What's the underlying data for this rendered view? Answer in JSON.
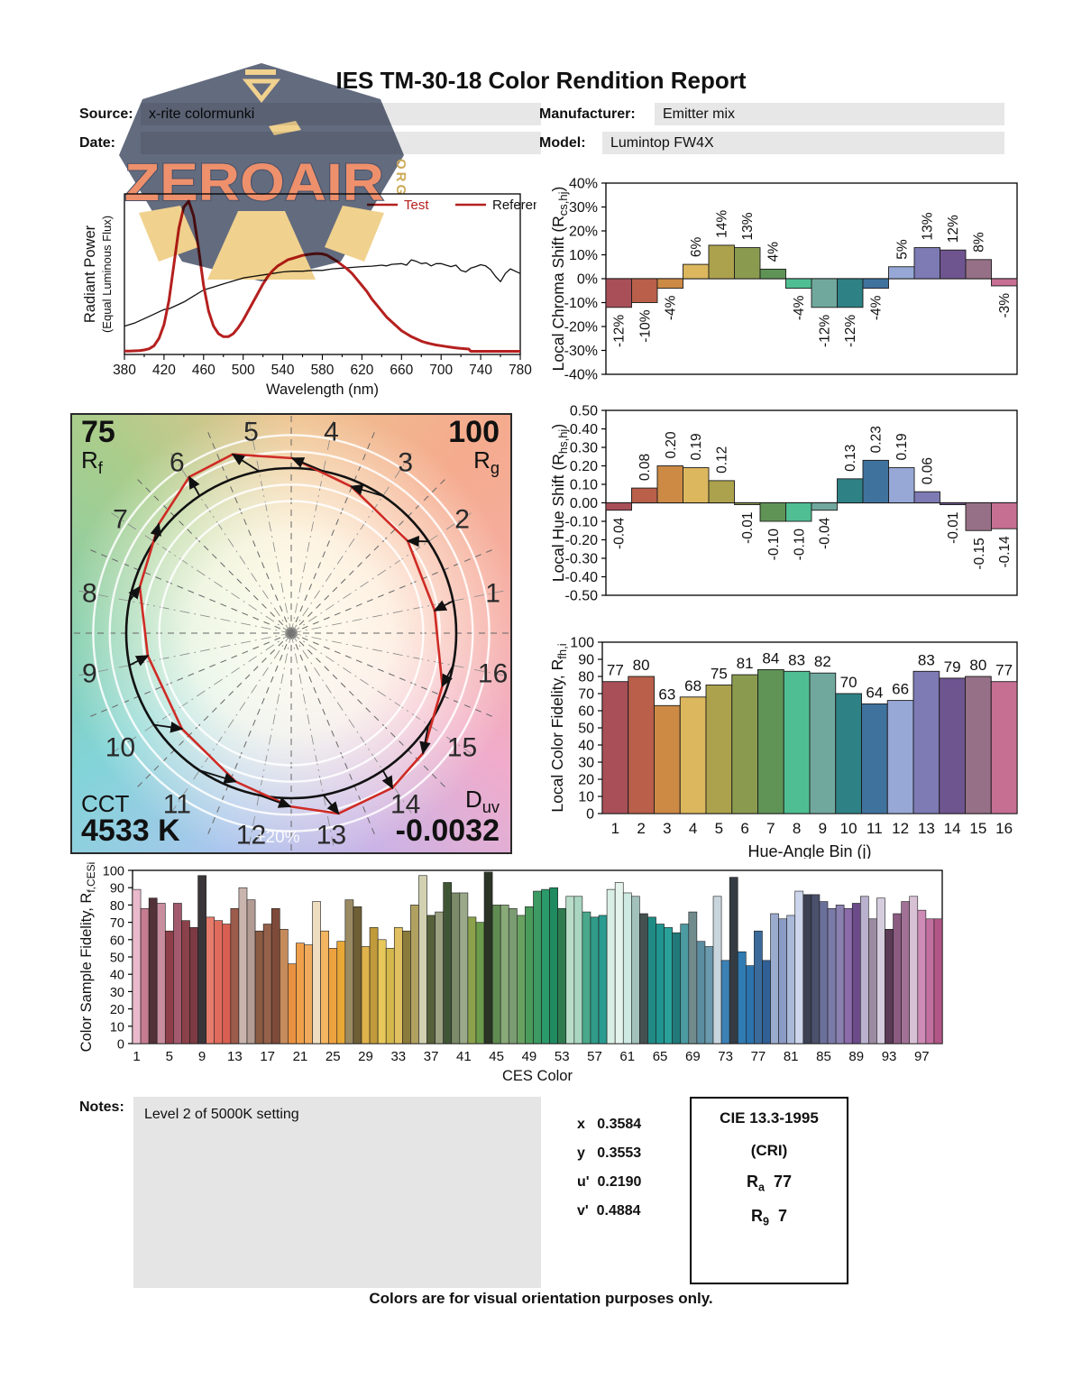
{
  "header": {
    "title": "IES TM-30-18 Color Rendition Report",
    "fields": {
      "source": {
        "label": "Source:",
        "value": "x-rite colormunki"
      },
      "date": {
        "label": "Date:",
        "value": ""
      },
      "manufacturer": {
        "label": "Manufacturer:",
        "value": "Emitter mix"
      },
      "model": {
        "label": "Model:",
        "value": "Lumintop FW4X"
      }
    }
  },
  "watermark": {
    "text": "ZEROAIR",
    "suffix": "ORG",
    "shield_color": "#5a6378",
    "gold": "#f0cf88",
    "coral": "#ee8a64"
  },
  "hue_bin_colors": [
    "#a84f58",
    "#b95f4a",
    "#cc8a45",
    "#dcb75e",
    "#aca24d",
    "#8a9b50",
    "#5f9456",
    "#4fbf93",
    "#71a89e",
    "#2e8184",
    "#40729e",
    "#97a8d6",
    "#7d7ab4",
    "#6f5590",
    "#967086",
    "#c66f93"
  ],
  "chart_data": [
    {
      "id": "spd",
      "type": "line",
      "xlabel": "Wavelength (nm)",
      "ylabel": "Radiant Power",
      "ylabel2": "(Equal Luminous Flux)",
      "xlim": [
        380,
        780
      ],
      "xticks": [
        380,
        420,
        460,
        500,
        540,
        580,
        620,
        660,
        700,
        740,
        780
      ],
      "legend": [
        {
          "label": "Test",
          "swatch": "#b5201f",
          "text_color": "#b5201f"
        },
        {
          "label": "Reference",
          "swatch": "#b5201f",
          "text_color": "#111111"
        }
      ],
      "series": [
        {
          "name": "Test",
          "color": "#b5201f",
          "width": 3,
          "points": [
            [
              380,
              0.005
            ],
            [
              385,
              0.005
            ],
            [
              390,
              0.006
            ],
            [
              395,
              0.008
            ],
            [
              400,
              0.012
            ],
            [
              405,
              0.02
            ],
            [
              410,
              0.04
            ],
            [
              415,
              0.09
            ],
            [
              420,
              0.18
            ],
            [
              425,
              0.34
            ],
            [
              430,
              0.58
            ],
            [
              435,
              0.82
            ],
            [
              440,
              0.96
            ],
            [
              445,
              1.0
            ],
            [
              450,
              0.9
            ],
            [
              455,
              0.68
            ],
            [
              460,
              0.44
            ],
            [
              465,
              0.27
            ],
            [
              470,
              0.17
            ],
            [
              475,
              0.12
            ],
            [
              480,
              0.1
            ],
            [
              485,
              0.1
            ],
            [
              490,
              0.12
            ],
            [
              495,
              0.16
            ],
            [
              500,
              0.21
            ],
            [
              505,
              0.27
            ],
            [
              510,
              0.33
            ],
            [
              515,
              0.39
            ],
            [
              520,
              0.45
            ],
            [
              525,
              0.5
            ],
            [
              530,
              0.54
            ],
            [
              535,
              0.57
            ],
            [
              540,
              0.59
            ],
            [
              545,
              0.61
            ],
            [
              550,
              0.62
            ],
            [
              555,
              0.63
            ],
            [
              560,
              0.64
            ],
            [
              565,
              0.645
            ],
            [
              570,
              0.65
            ],
            [
              575,
              0.652
            ],
            [
              580,
              0.65
            ],
            [
              585,
              0.64
            ],
            [
              590,
              0.62
            ],
            [
              595,
              0.6
            ],
            [
              600,
              0.575
            ],
            [
              605,
              0.55
            ],
            [
              610,
              0.52
            ],
            [
              615,
              0.48
            ],
            [
              620,
              0.44
            ],
            [
              625,
              0.4
            ],
            [
              630,
              0.35
            ],
            [
              635,
              0.31
            ],
            [
              640,
              0.27
            ],
            [
              645,
              0.23
            ],
            [
              650,
              0.2
            ],
            [
              655,
              0.17
            ],
            [
              660,
              0.14
            ],
            [
              665,
              0.12
            ],
            [
              670,
              0.1
            ],
            [
              675,
              0.085
            ],
            [
              680,
              0.07
            ],
            [
              685,
              0.06
            ],
            [
              690,
              0.052
            ],
            [
              695,
              0.045
            ],
            [
              700,
              0.04
            ],
            [
              705,
              0.035
            ],
            [
              710,
              0.03
            ],
            [
              715,
              0.026
            ],
            [
              720,
              0.022
            ],
            [
              725,
              0.02
            ],
            [
              728,
              0.018
            ],
            [
              730,
              0.003
            ],
            [
              740,
              0.003
            ],
            [
              780,
              0.003
            ]
          ]
        },
        {
          "name": "Reference",
          "color": "#111111",
          "width": 1.3,
          "points": [
            [
              380,
              0.17
            ],
            [
              390,
              0.19
            ],
            [
              400,
              0.22
            ],
            [
              410,
              0.25
            ],
            [
              415,
              0.265
            ],
            [
              420,
              0.28
            ],
            [
              425,
              0.285
            ],
            [
              430,
              0.3
            ],
            [
              440,
              0.33
            ],
            [
              450,
              0.37
            ],
            [
              460,
              0.41
            ],
            [
              470,
              0.43
            ],
            [
              480,
              0.45
            ],
            [
              490,
              0.47
            ],
            [
              500,
              0.49
            ],
            [
              510,
              0.5
            ],
            [
              520,
              0.51
            ],
            [
              530,
              0.52
            ],
            [
              540,
              0.53
            ],
            [
              550,
              0.535
            ],
            [
              560,
              0.535
            ],
            [
              570,
              0.54
            ],
            [
              580,
              0.54
            ],
            [
              590,
              0.55
            ],
            [
              600,
              0.555
            ],
            [
              610,
              0.56
            ],
            [
              620,
              0.565
            ],
            [
              630,
              0.568
            ],
            [
              640,
              0.575
            ],
            [
              645,
              0.57
            ],
            [
              650,
              0.58
            ],
            [
              660,
              0.585
            ],
            [
              665,
              0.575
            ],
            [
              670,
              0.61
            ],
            [
              675,
              0.6
            ],
            [
              680,
              0.585
            ],
            [
              685,
              0.59
            ],
            [
              690,
              0.57
            ],
            [
              695,
              0.585
            ],
            [
              700,
              0.585
            ],
            [
              705,
              0.575
            ],
            [
              710,
              0.565
            ],
            [
              715,
              0.575
            ],
            [
              720,
              0.54
            ],
            [
              725,
              0.53
            ],
            [
              730,
              0.555
            ],
            [
              735,
              0.565
            ],
            [
              740,
              0.578
            ],
            [
              745,
              0.57
            ],
            [
              750,
              0.545
            ],
            [
              755,
              0.5
            ],
            [
              760,
              0.465
            ],
            [
              765,
              0.52
            ],
            [
              770,
              0.55
            ],
            [
              775,
              0.535
            ],
            [
              780,
              0.52
            ]
          ]
        }
      ]
    },
    {
      "id": "chroma",
      "type": "bar",
      "ylabel_parts": [
        {
          "t": "Local Chroma Shift (R"
        },
        {
          "t": "cs,hj",
          "sub": true
        },
        {
          "t": ")"
        }
      ],
      "ylim": [
        -40,
        40
      ],
      "ytick_labels": [
        "40%",
        "30%",
        "20%",
        "10%",
        "0%",
        "-10%",
        "-20%",
        "-30%",
        "-40%"
      ],
      "ytick_values": [
        40,
        30,
        20,
        10,
        0,
        -10,
        -20,
        -30,
        -40
      ],
      "values": [
        -12,
        -10,
        -4,
        6,
        14,
        13,
        4,
        -4,
        -12,
        -12,
        -4,
        5,
        13,
        12,
        8,
        -3
      ],
      "labels": [
        "-12%",
        "-10%",
        "-4%",
        "6%",
        "14%",
        "13%",
        "4%",
        "-4%",
        "-12%",
        "-12%",
        "-4%",
        "5%",
        "13%",
        "12%",
        "8%",
        "-3%"
      ]
    },
    {
      "id": "hue",
      "type": "bar",
      "ylabel_parts": [
        {
          "t": "Local Hue Shift (R"
        },
        {
          "t": "hs,hj",
          "sub": true
        },
        {
          "t": ")"
        }
      ],
      "ylim": [
        -0.5,
        0.5
      ],
      "ytick_labels": [
        "0.50",
        "0.40",
        "0.30",
        "0.20",
        "0.10",
        "0.00",
        "-0.10",
        "-0.20",
        "-0.30",
        "-0.40",
        "-0.50"
      ],
      "ytick_values": [
        0.5,
        0.4,
        0.3,
        0.2,
        0.1,
        0,
        -0.1,
        -0.2,
        -0.3,
        -0.4,
        -0.5
      ],
      "values": [
        -0.04,
        0.08,
        0.2,
        0.19,
        0.12,
        -0.01,
        -0.1,
        -0.1,
        -0.04,
        0.13,
        0.23,
        0.19,
        0.06,
        -0.01,
        -0.15,
        -0.14
      ],
      "labels": [
        "-0.04",
        "0.08",
        "0.20",
        "0.19",
        "0.12",
        "-0.01",
        "-0.10",
        "-0.10",
        "-0.04",
        "0.13",
        "0.23",
        "0.19",
        "0.06",
        "-0.01",
        "-0.15",
        "-0.14"
      ]
    },
    {
      "id": "fidelity",
      "type": "bar",
      "xlabel": "Hue-Angle Bin (j)",
      "ylabel_parts": [
        {
          "t": "Local Color Fidelity, R"
        },
        {
          "t": "fh,i",
          "sub": true
        }
      ],
      "ylim": [
        0,
        100
      ],
      "ytick_labels": [
        "100",
        "90",
        "80",
        "70",
        "60",
        "50",
        "40",
        "30",
        "20",
        "10",
        "0"
      ],
      "ytick_values": [
        100,
        90,
        80,
        70,
        60,
        50,
        40,
        30,
        20,
        10,
        0
      ],
      "categories": [
        "1",
        "2",
        "3",
        "4",
        "5",
        "6",
        "7",
        "8",
        "9",
        "10",
        "11",
        "12",
        "13",
        "14",
        "15",
        "16"
      ],
      "values": [
        77,
        80,
        63,
        68,
        75,
        81,
        84,
        83,
        82,
        70,
        64,
        66,
        83,
        79,
        80,
        77
      ],
      "labels": [
        "77",
        "80",
        "63",
        "68",
        "75",
        "81",
        "84",
        "83",
        "82",
        "70",
        "64",
        "66",
        "83",
        "79",
        "80",
        "77"
      ]
    },
    {
      "id": "ces",
      "type": "bar",
      "xlabel": "CES Color",
      "ylabel_parts": [
        {
          "t": "Color Sample Fidelity, R"
        },
        {
          "t": "f,CESi",
          "sub": true
        }
      ],
      "ylim": [
        0,
        100
      ],
      "ytick_labels": [
        "100",
        "90",
        "80",
        "70",
        "60",
        "50",
        "40",
        "30",
        "20",
        "10",
        "0"
      ],
      "ytick_values": [
        100,
        90,
        80,
        70,
        60,
        50,
        40,
        30,
        20,
        10,
        0
      ],
      "xtick_labels": [
        "1",
        "5",
        "9",
        "13",
        "17",
        "21",
        "25",
        "29",
        "33",
        "37",
        "41",
        "45",
        "49",
        "53",
        "57",
        "61",
        "65",
        "69",
        "73",
        "77",
        "81",
        "85",
        "89",
        "93",
        "97"
      ],
      "values": [
        89,
        78,
        84,
        81,
        65,
        81,
        71,
        67,
        97,
        73,
        71,
        69,
        78,
        90,
        83,
        65,
        69,
        78,
        66,
        46,
        58,
        57,
        82,
        65,
        55,
        59,
        83,
        79,
        56,
        67,
        60,
        55,
        67,
        65,
        80,
        97,
        74,
        76,
        93,
        87,
        87,
        73,
        70,
        99,
        80,
        80,
        78,
        74,
        79,
        88,
        89,
        90,
        78,
        85,
        85,
        76,
        73,
        74,
        89,
        93,
        87,
        85,
        75,
        73,
        69,
        67,
        64,
        69,
        76,
        59,
        56,
        85,
        48,
        96,
        53,
        45,
        65,
        48,
        75,
        72,
        74,
        88,
        86,
        86,
        82,
        78,
        80,
        78,
        81,
        85,
        72,
        84,
        66,
        75,
        82,
        85,
        77,
        72,
        72
      ],
      "colors": [
        "#e9bacb",
        "#c57c90",
        "#533138",
        "#c98da0",
        "#8e3f49",
        "#a35a6e",
        "#8b4149",
        "#7d3a43",
        "#3a3539",
        "#e87c6c",
        "#e06b5d",
        "#d95f53",
        "#9c5b4b",
        "#c9b5ae",
        "#b29b93",
        "#8b5a43",
        "#95614b",
        "#7e4a39",
        "#c58b5b",
        "#e89140",
        "#f0a04b",
        "#f0aa5b",
        "#eeddc1",
        "#f4b561",
        "#eda240",
        "#e8a836",
        "#9b8b63",
        "#6e5f36",
        "#e0b24b",
        "#c09a3b",
        "#e8c85b",
        "#d4b84b",
        "#e0c061",
        "#8a7a3b",
        "#b1a161",
        "#d1d1b1",
        "#56613b",
        "#9ba181",
        "#405536",
        "#7b8b69",
        "#99a989",
        "#8ba14b",
        "#6b9b4b",
        "#2b3425",
        "#608b51",
        "#89a979",
        "#7b9b73",
        "#69a161",
        "#4b9b5b",
        "#3b9b63",
        "#2b9b6b",
        "#208b60",
        "#307b50",
        "#b9ddc9",
        "#a9d5c1",
        "#4ba98b",
        "#309b89",
        "#299b91",
        "#d9efe5",
        "#e5f3ed",
        "#cde9e1",
        "#a1c1b9",
        "#45514f",
        "#208b85",
        "#20958f",
        "#29a19b",
        "#217979",
        "#4b9ba1",
        "#718b8d",
        "#5b8da1",
        "#6b99ad",
        "#c9d5dd",
        "#3b81b5",
        "#343b43",
        "#307bb1",
        "#2b73ad",
        "#3b6b9b",
        "#306095",
        "#9babcd",
        "#8b9bc5",
        "#abb9d9",
        "#cdd5ed",
        "#3b4053",
        "#4b506b",
        "#6b709b",
        "#7b7ba9",
        "#8b81b1",
        "#8b6ba9",
        "#6b4b89",
        "#b9b1cd",
        "#9b8ba1",
        "#d5cddd",
        "#5b3b56",
        "#8b5b81",
        "#a17195",
        "#d9c1d5",
        "#cd8bb5",
        "#c1709f",
        "#b15686"
      ]
    }
  ],
  "cvg": {
    "rf_value": "75",
    "rf_sym": "R",
    "rf_sub": "f",
    "rg_value": "100",
    "rg_sym": "R",
    "rg_sub": "g",
    "cct_label": "CCT",
    "cct_value": "4533 K",
    "duv_sym": "D",
    "duv_sub": "uv",
    "duv_value": "-0.0032",
    "ring_label": "+20%",
    "bin_numbers": [
      "1",
      "2",
      "3",
      "4",
      "5",
      "6",
      "7",
      "8",
      "9",
      "10",
      "11",
      "12",
      "13",
      "14",
      "15",
      "16"
    ],
    "test_color": "#cf2b25",
    "reference_color": "#111111"
  },
  "notes": {
    "label": "Notes:",
    "text": "Level 2 of 5000K setting"
  },
  "chromaticity": {
    "rows": [
      {
        "label": "x",
        "value": "0.3584"
      },
      {
        "label": "y",
        "value": "0.3553"
      },
      {
        "label": "u'",
        "value": "0.2190"
      },
      {
        "label": "v'",
        "value": "0.4884"
      }
    ]
  },
  "cri": {
    "title": "CIE 13.3-1995",
    "subtitle": "(CRI)",
    "rows": [
      {
        "label": "R",
        "sub": "a",
        "value": "77"
      },
      {
        "label": "R",
        "sub": "9",
        "value": "7"
      }
    ]
  },
  "footer": "Colors are for visual orientation purposes only."
}
